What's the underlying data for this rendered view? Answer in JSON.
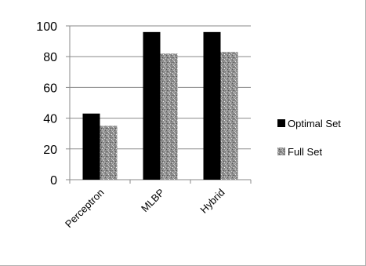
{
  "chart_data": {
    "type": "bar",
    "categories": [
      "Perceptron",
      "MLBP",
      "Hybrid"
    ],
    "series": [
      {
        "name": "Optimal Set",
        "values": [
          43,
          96,
          96
        ],
        "color": "#000000",
        "pattern": "solid"
      },
      {
        "name": "Full Set",
        "values": [
          35,
          82,
          83
        ],
        "color": "#9a9a9a",
        "pattern": "speckled-gray"
      }
    ],
    "ylim": [
      0,
      100
    ],
    "yticks": [
      0,
      20,
      40,
      60,
      80,
      100
    ],
    "ytick_labels": [
      "0",
      "20",
      "40",
      "60",
      "80",
      "100"
    ],
    "grid": true,
    "legend_position": "right",
    "title": "",
    "xlabel": "",
    "ylabel": ""
  }
}
